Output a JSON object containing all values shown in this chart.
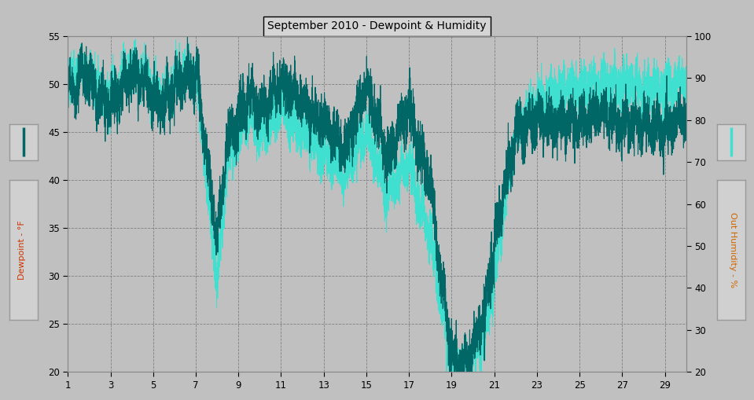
{
  "title": "September 2010 - Dewpoint & Humidity",
  "bg_color": "#c0c0c0",
  "plot_bg_color": "#c0c0c0",
  "left_ylabel": "Dewpoint - °F",
  "right_ylabel": "Out Humidity - %",
  "ylim_left": [
    20.0,
    55.0
  ],
  "ylim_right": [
    20,
    100
  ],
  "yticks_left": [
    20.0,
    25.0,
    30.0,
    35.0,
    40.0,
    45.0,
    50.0,
    55.0
  ],
  "yticks_right": [
    20,
    30,
    40,
    50,
    60,
    70,
    80,
    90,
    100
  ],
  "xticks": [
    1,
    3,
    5,
    7,
    9,
    11,
    13,
    15,
    17,
    19,
    21,
    23,
    25,
    27,
    29
  ],
  "xlim": [
    1,
    30
  ],
  "dewpoint_color": "#006666",
  "humidity_color": "#40e0d0",
  "title_fontsize": 10,
  "label_color_left": "#cc3300",
  "label_color_right": "#cc6600",
  "swatch_bg": "#d0d0d0",
  "box_edge": "#999999"
}
